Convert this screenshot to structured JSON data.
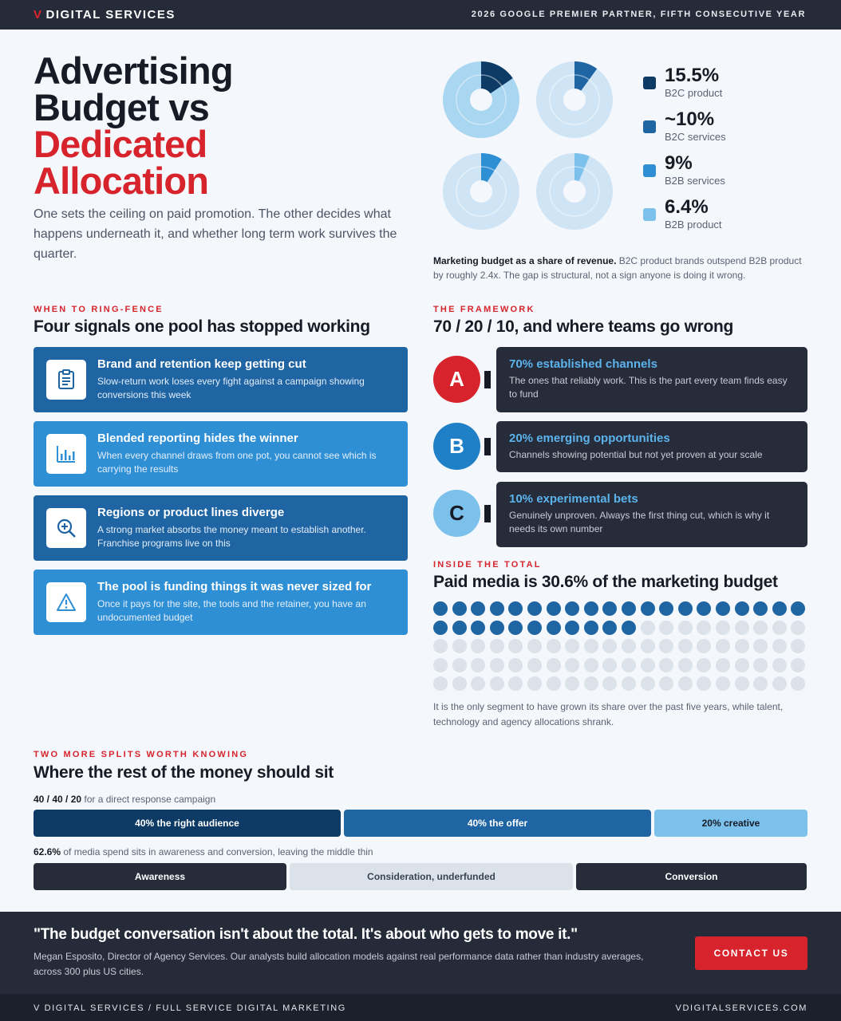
{
  "topbar": {
    "brand_mark": "V",
    "brand_name": "DIGITAL SERVICES",
    "tagline": "2026 GOOGLE PREMIER PARTNER, FIFTH CONSECUTIVE YEAR"
  },
  "hero": {
    "title_line1": "Advertising",
    "title_line2": "Budget vs",
    "title_line3": "Dedicated",
    "title_line4": "Allocation",
    "subtitle": "One sets the ceiling on paid promotion. The other decides what happens underneath it, and whether long term work survives the quarter."
  },
  "chart_data": {
    "type": "pie",
    "title": "",
    "categories": [
      "B2C product",
      "B2C services",
      "B2B services",
      "B2B product"
    ],
    "values": [
      15.5,
      10,
      9,
      6.4
    ],
    "value_labels": [
      "15.5%",
      "~10%",
      "9%",
      "6.4%"
    ],
    "colors": [
      "#0d3b66",
      "#1f64a3",
      "#2f8fd4",
      "#7cc1ec"
    ],
    "legend": "right"
  },
  "donut_note": {
    "lead": "Marketing budget as a share of revenue.",
    "text": "B2C product brands outspend B2B product by roughly 2.4x. The gap is structural, not a sign anyone is doing it wrong."
  },
  "signals": {
    "eyebrow": "WHEN TO RING-FENCE",
    "heading": "Four signals one pool has stopped working",
    "items": [
      {
        "title": "Brand and retention keep getting cut",
        "desc": "Slow-return work loses every fight against a campaign showing conversions this week",
        "icon": "clipboard-icon"
      },
      {
        "title": "Blended reporting hides the winner",
        "desc": "When every channel draws from one pot, you cannot see which is carrying the results",
        "icon": "bar-chart-icon"
      },
      {
        "title": "Regions or product lines diverge",
        "desc": "A strong market absorbs the money meant to establish another. Franchise programs live on this",
        "icon": "magnify-plus-icon"
      },
      {
        "title": "The pool is funding things it was never sized for",
        "desc": "Once it pays for the site, the tools and the retainer, you have an undocumented budget",
        "icon": "warning-icon"
      }
    ]
  },
  "framework": {
    "eyebrow": "THE FRAMEWORK",
    "heading": "70 / 20 / 10, and where teams go wrong",
    "items": [
      {
        "letter": "A",
        "title": "70% established channels",
        "desc": "The ones that reliably work. This is the part every team finds easy to fund",
        "color": "#d7242c"
      },
      {
        "letter": "B",
        "title": "20% emerging opportunities",
        "desc": "Channels showing potential but not yet proven at your scale",
        "color": "#1f7fc7"
      },
      {
        "letter": "C",
        "title": "10% experimental bets",
        "desc": "Genuinely unproven. Always the first thing cut, which is why it needs its own number",
        "color": "#7cc1ec"
      }
    ]
  },
  "paid_media": {
    "eyebrow": "INSIDE THE TOTAL",
    "heading": "Paid media is 30.6% of the marketing budget",
    "share_percent": 30.6,
    "filled_dots": 31,
    "total_dots": 100,
    "filled_color": "#1f64a3",
    "empty_color": "#dbe2ea",
    "note": "It is the only segment to have grown its share over the past five years, while talent, technology and agency allocations shrank."
  },
  "splits": {
    "eyebrow": "TWO MORE SPLITS WORTH KNOWING",
    "heading": "Where the rest of the money should sit",
    "split1_lead": "40 / 40 / 20",
    "split1_text": "for a direct response campaign",
    "split1_bars": [
      {
        "label": "40% the right audience",
        "share": 40,
        "bg": "#0d3b66",
        "fg": "#ffffff"
      },
      {
        "label": "40% the offer",
        "share": 40,
        "bg": "#1f64a3",
        "fg": "#ffffff"
      },
      {
        "label": "20% creative",
        "share": 20,
        "bg": "#7cc1ec",
        "fg": "#161b25"
      }
    ],
    "split2_lead": "62.6%",
    "split2_text": "of media spend sits in awareness and conversion, leaving the middle thin",
    "split2_bars": [
      {
        "label": "Awareness",
        "bg": "#262c3a",
        "fg": "#ffffff"
      },
      {
        "label": "Consideration, underfunded",
        "bg": "#dbe2ea",
        "fg": "#3b4352"
      },
      {
        "label": "Conversion",
        "bg": "#262c3a",
        "fg": "#ffffff"
      }
    ]
  },
  "quote": {
    "text": "\"The budget conversation isn't about the total. It's about who gets to move it.\"",
    "attribution": "Megan Esposito, Director of Agency Services. Our analysts build allocation models against real performance data rather than industry averages, across 300 plus US cities.",
    "cta_label": "CONTACT US"
  },
  "footer": {
    "left": "V DIGITAL SERVICES / FULL SERVICE DIGITAL MARKETING",
    "right": "VDIGITALSERVICES.COM"
  }
}
